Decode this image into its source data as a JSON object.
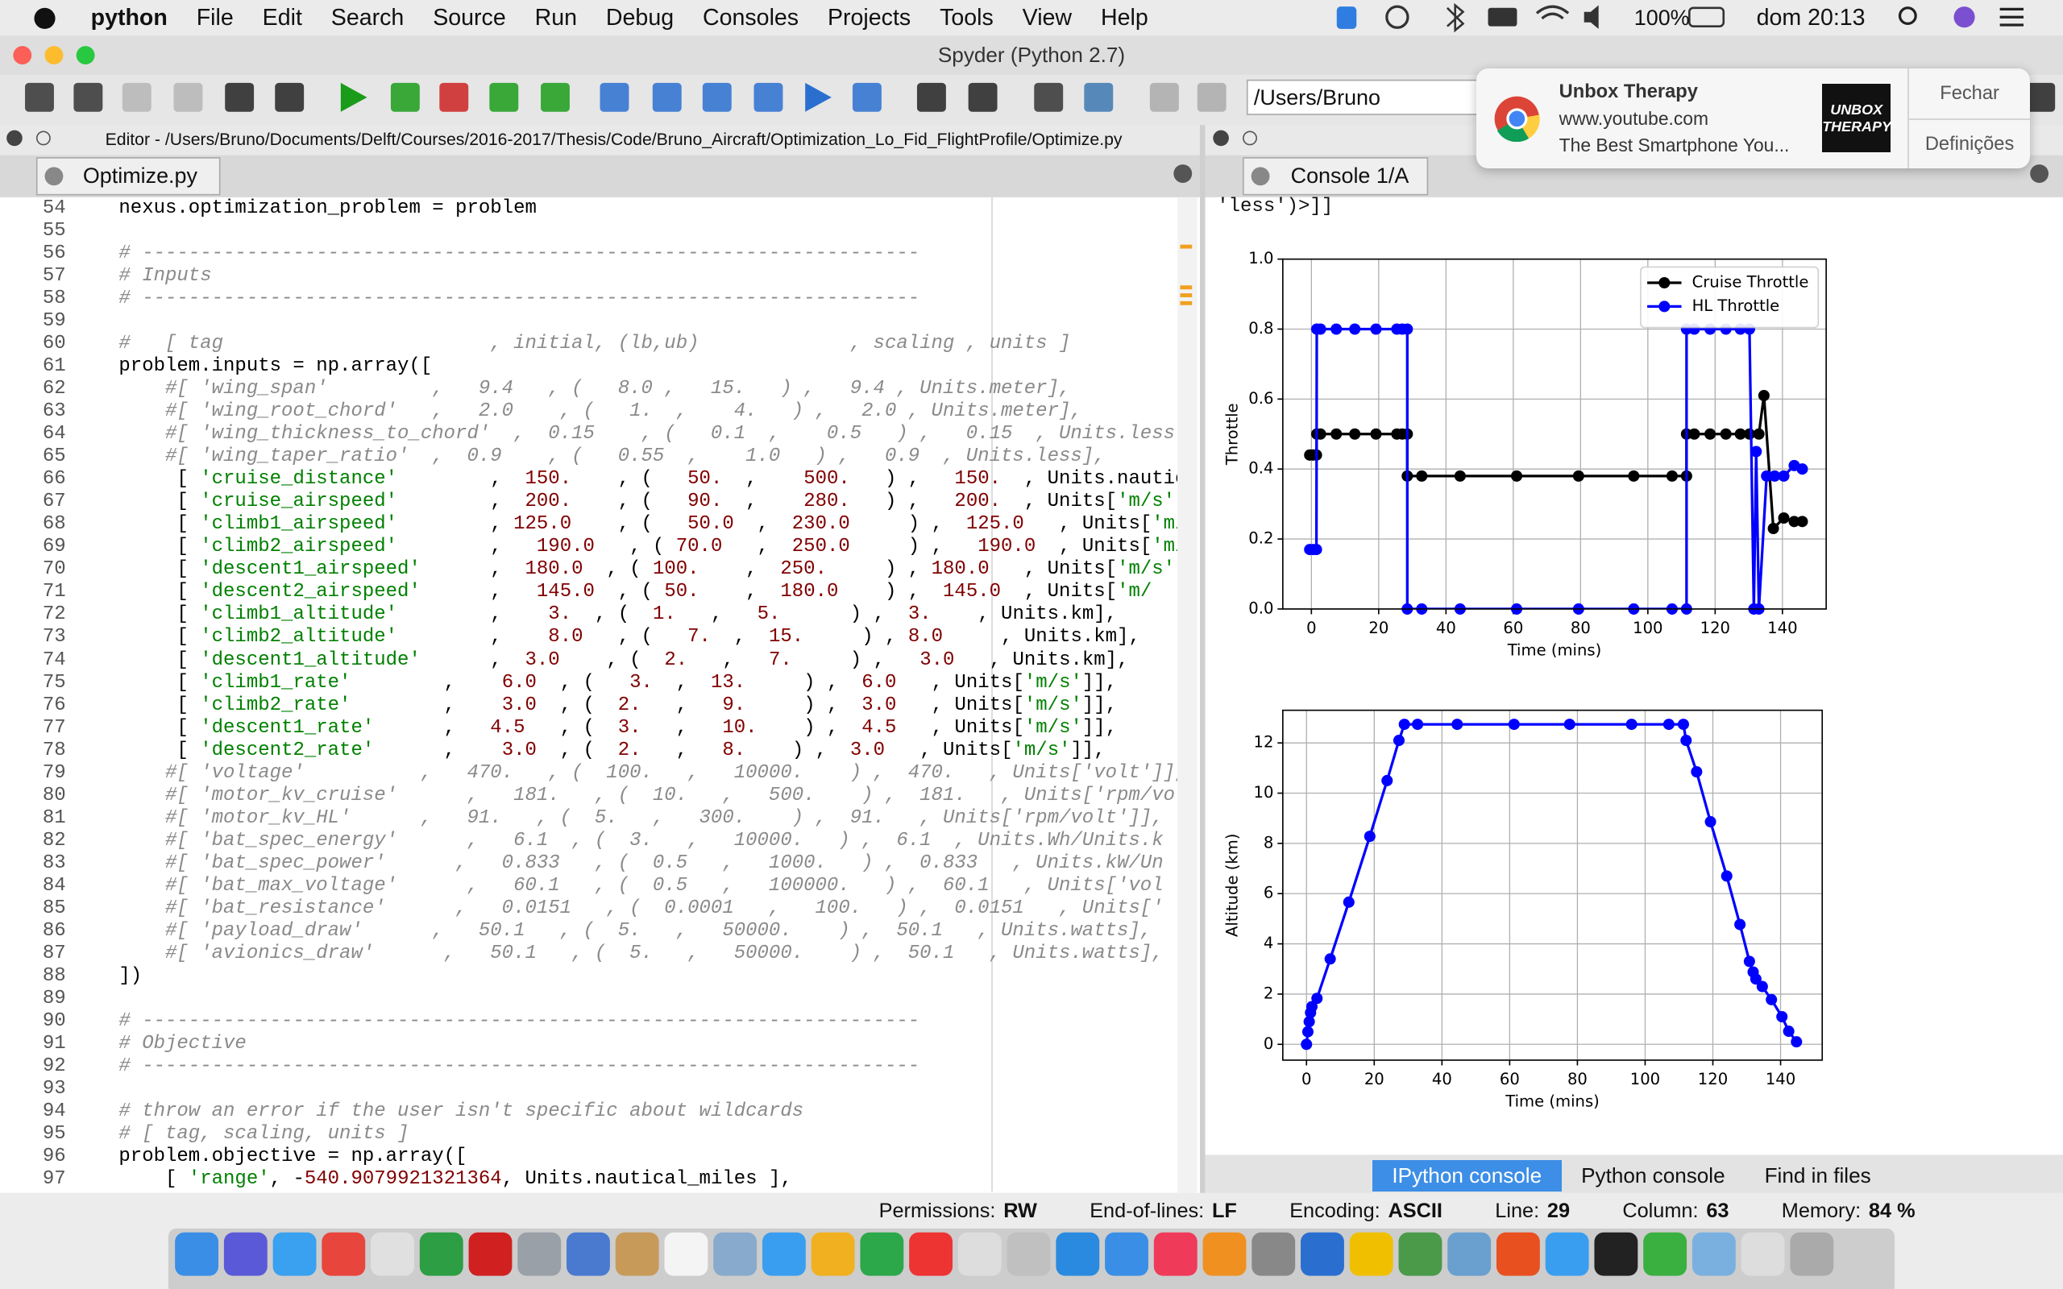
{
  "menu_bar": {
    "app": "python",
    "items": [
      "File",
      "Edit",
      "Search",
      "Source",
      "Run",
      "Debug",
      "Consoles",
      "Projects",
      "Tools",
      "View",
      "Help"
    ],
    "battery": "100%",
    "clock": "dom 20:13"
  },
  "window": {
    "title": "Spyder (Python 2.7)"
  },
  "toolbar": {
    "path": "/Users/Bruno"
  },
  "notification": {
    "title": "Unbox Therapy",
    "source": "www.youtube.com",
    "body": "The Best Smartphone You...",
    "thumbnail": "UNBOX THERAPY",
    "actions": [
      "Fechar",
      "Definições"
    ]
  },
  "editor": {
    "header": "Editor - /Users/Bruno/Documents/Delft/Courses/2016-2017/Thesis/Code/Bruno_Aircraft/Optimization_Lo_Fid_FlightProfile/Optimize.py",
    "tab": "Optimize.py",
    "lines": [
      {
        "number": 54,
        "code": "    nexus.optimization_problem = problem"
      },
      {
        "number": 55,
        "code": ""
      },
      {
        "number": 56,
        "code": "    # -------------------------------------------------------------------"
      },
      {
        "number": 57,
        "code": "    # Inputs"
      },
      {
        "number": 58,
        "code": "    # -------------------------------------------------------------------"
      },
      {
        "number": 59,
        "code": ""
      },
      {
        "number": 60,
        "code": "    #   [ tag                       , initial, (lb,ub)             , scaling , units ]"
      },
      {
        "number": 61,
        "code": "    problem.inputs = np.array(["
      },
      {
        "number": 62,
        "code": "        #[ 'wing_span'         ,   9.4   , (   8.0 ,   15.   ) ,   9.4 , Units.meter],"
      },
      {
        "number": 63,
        "code": "        #[ 'wing_root_chord'   ,   2.0    , (   1.  ,    4.   ) ,   2.0 , Units.meter],"
      },
      {
        "number": 64,
        "code": "        #[ 'wing_thickness_to_chord'  ,  0.15    , (   0.1  ,    0.5   ) ,   0.15  , Units.less"
      },
      {
        "number": 65,
        "code": "        #[ 'wing_taper_ratio'  ,  0.9    , (   0.55  ,    1.0   ) ,   0.9  , Units.less],"
      },
      {
        "number": 66,
        "code": "         [ 'cruise_distance'        ,  150.    , (   50.  ,    500.   ) ,   150.  , Units.nautic"
      },
      {
        "number": 67,
        "code": "         [ 'cruise_airspeed'        ,  200.    , (   90.  ,    280.   ) ,   200.  , Units['m/s']]"
      },
      {
        "number": 68,
        "code": "         [ 'climb1_airspeed'        , 125.0    , (   50.0  ,  230.0     ) ,  125.0   , Units['m/"
      },
      {
        "number": 69,
        "code": "         [ 'climb2_airspeed'        ,   190.0   , ( 70.0   ,  250.0     ) ,   190.0  , Units['m/"
      },
      {
        "number": 70,
        "code": "         [ 'descent1_airspeed'      ,  180.0  , ( 100.    ,  250.     ) , 180.0   , Units['m/s'"
      },
      {
        "number": 71,
        "code": "         [ 'descent2_airspeed'      ,   145.0  , ( 50.    ,  180.0    ) ,  145.0  , Units['m/"
      },
      {
        "number": 72,
        "code": "         [ 'climb1_altitude'        ,    3.  , (  1.   ,   5.      ) ,  3.    , Units.km],"
      },
      {
        "number": 73,
        "code": "         [ 'climb2_altitude'        ,    8.0   , (   7.  ,  15.     ) , 8.0     , Units.km],"
      },
      {
        "number": 74,
        "code": "         [ 'descent1_altitude'      ,  3.0    , (  2.   ,   7.     ) ,   3.0   , Units.km],"
      },
      {
        "number": 75,
        "code": "         [ 'climb1_rate'        ,    6.0  , (   3.  ,  13.     ) ,  6.0   , Units['m/s']],"
      },
      {
        "number": 76,
        "code": "         [ 'climb2_rate'        ,    3.0  , (  2.   ,   9.     ) ,  3.0   , Units['m/s']],"
      },
      {
        "number": 77,
        "code": "         [ 'descent1_rate'      ,   4.5   , (  3.   ,   10.    ) ,  4.5   , Units['m/s']],"
      },
      {
        "number": 78,
        "code": "         [ 'descent2_rate'      ,    3.0  , (  2.   ,   8.    ) ,  3.0   , Units['m/s']],"
      },
      {
        "number": 79,
        "code": "        #[ 'voltage'          ,   470.   , (  100.   ,   10000.    ) ,  470.   , Units['volt']],"
      },
      {
        "number": 80,
        "code": "        #[ 'motor_kv_cruise'      ,   181.   , (  10.   ,   500.    ) ,  181.   , Units['rpm/vo"
      },
      {
        "number": 81,
        "code": "        #[ 'motor_kv_HL'      ,   91.   , (  5.   ,   300.    ) ,  91.   , Units['rpm/volt']],"
      },
      {
        "number": 82,
        "code": "        #[ 'bat_spec_energy'      ,   6.1  , (  3.   ,   10000.   ) ,  6.1  , Units.Wh/Units.k"
      },
      {
        "number": 83,
        "code": "        #[ 'bat_spec_power'      ,   0.833   , (  0.5   ,   1000.   ) ,  0.833   , Units.kW/Un"
      },
      {
        "number": 84,
        "code": "        #[ 'bat_max_voltage'      ,   60.1   , (  0.5   ,   100000.   ) ,  60.1   , Units['vol"
      },
      {
        "number": 85,
        "code": "        #[ 'bat_resistance'      ,   0.0151   , (  0.0001   ,   100.   ) ,  0.0151   , Units['"
      },
      {
        "number": 86,
        "code": "        #[ 'payload_draw'      ,   50.1   , (  5.   ,   50000.    ) ,  50.1   , Units.watts],"
      },
      {
        "number": 87,
        "code": "        #[ 'avionics_draw'      ,   50.1   , (  5.   ,   50000.    ) ,  50.1   , Units.watts],"
      },
      {
        "number": 88,
        "code": "    ])"
      },
      {
        "number": 89,
        "code": ""
      },
      {
        "number": 90,
        "code": "    # -------------------------------------------------------------------"
      },
      {
        "number": 91,
        "code": "    # Objective"
      },
      {
        "number": 92,
        "code": "    # -------------------------------------------------------------------"
      },
      {
        "number": 93,
        "code": ""
      },
      {
        "number": 94,
        "code": "    # throw an error if the user isn't specific about wildcards"
      },
      {
        "number": 95,
        "code": "    # [ tag, scaling, units ]"
      },
      {
        "number": 96,
        "code": "    problem.objective = np.array(["
      },
      {
        "number": 97,
        "code": "        [ 'range', -540.9079921321364, Units.nautical_miles ],"
      }
    ]
  },
  "console": {
    "tab": "Console 1/A",
    "output": "'less')>]]",
    "tabs": [
      "IPython console",
      "Python console",
      "Find in files"
    ]
  },
  "status_bar": [
    {
      "label": "Permissions:",
      "value": "RW"
    },
    {
      "label": "End-of-lines:",
      "value": "LF"
    },
    {
      "label": "Encoding:",
      "value": "ASCII"
    },
    {
      "label": "Line:",
      "value": "29"
    },
    {
      "label": "Column:",
      "value": "63"
    },
    {
      "label": "Memory:",
      "value": "84 %"
    }
  ],
  "chart_data": [
    {
      "type": "line",
      "xlabel": "Time (mins)",
      "ylabel": "Throttle",
      "xlim": [
        -8.5,
        153
      ],
      "ylim": [
        0,
        1.0
      ],
      "xticks": [
        0,
        20,
        40,
        60,
        80,
        100,
        120,
        140
      ],
      "yticks": [
        {
          "value": 0,
          "label": "0.0"
        },
        0.2,
        0.4,
        0.6,
        0.8,
        {
          "value": 1.0,
          "label": "1.0"
        }
      ],
      "grid": true,
      "legend": "upper right",
      "series": [
        {
          "name": "Cruise Throttle",
          "color": "#000000",
          "x": [
            -0.5,
            0.5,
            1.5,
            1.6,
            2.7,
            7.4,
            12.9,
            19.2,
            25.4,
            27,
            28.5,
            28.5,
            32.8,
            44.2,
            61,
            79.4,
            95.8,
            107.2,
            111.5,
            111.5,
            113.8,
            118.5,
            123.2,
            127.5,
            130.2,
            133,
            134.5,
            137.3,
            140.4,
            143.5,
            145.9
          ],
          "values": [
            0.44,
            0.44,
            0.44,
            0.5,
            0.5,
            0.5,
            0.5,
            0.5,
            0.5,
            0.5,
            0.5,
            0.38,
            0.38,
            0.38,
            0.38,
            0.38,
            0.38,
            0.38,
            0.38,
            0.5,
            0.5,
            0.5,
            0.5,
            0.5,
            0.5,
            0.5,
            0.61,
            0.23,
            0.26,
            0.25,
            0.25
          ]
        },
        {
          "name": "HL Throttle",
          "color": "#0000ff",
          "x": [
            -0.5,
            0.5,
            1.5,
            1.6,
            2.7,
            7.4,
            12.9,
            19.2,
            25.4,
            27,
            28.5,
            28.5,
            32.8,
            44.2,
            61,
            79.4,
            95.8,
            107.2,
            111.5,
            111.5,
            113.8,
            118.5,
            123.2,
            127.5,
            130.2,
            131.5,
            132.2,
            133,
            135.3,
            137.7,
            140.4,
            143.5,
            145.9
          ],
          "values": [
            0.17,
            0.17,
            0.17,
            0.8,
            0.8,
            0.8,
            0.8,
            0.8,
            0.8,
            0.8,
            0.8,
            0,
            0,
            0,
            0,
            0,
            0,
            0,
            0,
            0.8,
            0.8,
            0.8,
            0.8,
            0.8,
            0.8,
            0,
            0.45,
            0,
            0.38,
            0.38,
            0.38,
            0.41,
            0.4
          ]
        }
      ]
    },
    {
      "type": "line",
      "xlabel": "Time (mins)",
      "ylabel": "Altitude (km)",
      "xlim": [
        -7,
        152.3
      ],
      "ylim": [
        -0.63,
        13.3
      ],
      "xticks": [
        0,
        20,
        40,
        60,
        80,
        100,
        120,
        140
      ],
      "yticks": [
        0,
        2,
        4,
        6,
        8,
        10,
        12
      ],
      "grid": true,
      "series": [
        {
          "color": "#0000ff",
          "x": [
            0,
            0.4,
            0.8,
            1.2,
            1.6,
            3.1,
            7,
            12.5,
            18.7,
            23.8,
            27.3,
            28.9,
            32.8,
            44.5,
            61.3,
            77.7,
            96,
            107,
            111.3,
            112.1,
            115.2,
            119.3,
            124.1,
            128,
            130.8,
            131.9,
            132.7,
            134.6,
            137.3,
            140.4,
            142.4,
            144.7
          ],
          "values": [
            0,
            0.5,
            0.9,
            1.26,
            1.5,
            1.83,
            3.4,
            5.66,
            8.28,
            10.5,
            12.1,
            12.74,
            12.74,
            12.74,
            12.74,
            12.74,
            12.74,
            12.74,
            12.74,
            12.1,
            10.85,
            8.86,
            6.7,
            4.77,
            3.3,
            2.88,
            2.6,
            2.3,
            1.78,
            1.1,
            0.52,
            0.1
          ]
        }
      ]
    }
  ]
}
